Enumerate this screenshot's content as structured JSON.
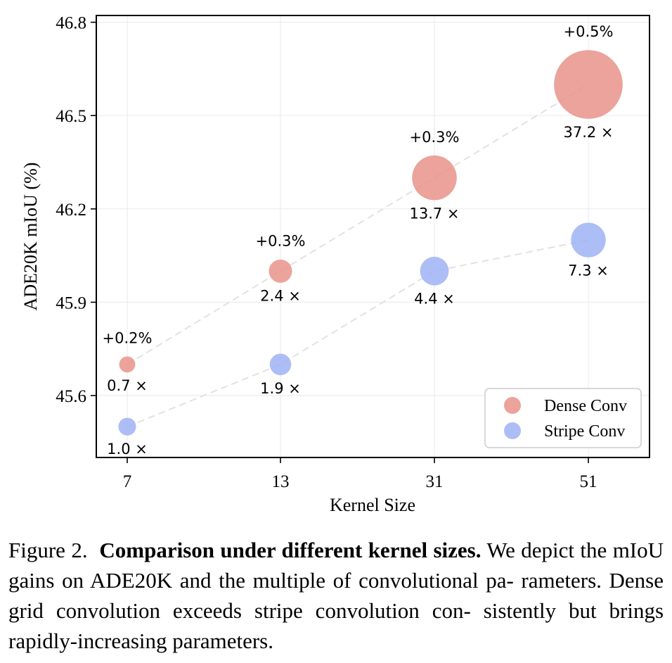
{
  "chart_data": {
    "type": "scatter",
    "x_categories": [
      "7",
      "13",
      "31",
      "51"
    ],
    "xlabel": "Kernel Size",
    "ylabel": "ADE20K mIoU (%)",
    "ylim": [
      45.4,
      46.82
    ],
    "yticks": [
      "45.6",
      "45.9",
      "46.2",
      "46.5",
      "46.8"
    ],
    "grid": true,
    "legend_position": "bottom-right",
    "series": [
      {
        "name": "Dense Conv",
        "color": "#e8938b",
        "line_style": "dashed",
        "values": [
          45.7,
          46.0,
          46.3,
          46.6
        ],
        "size_labels": [
          "0.7 ×",
          "2.4 ×",
          "13.7 ×",
          "37.2 ×"
        ],
        "param_multiples": [
          0.7,
          2.4,
          13.7,
          37.2
        ],
        "gain_labels": [
          "+0.2%",
          "+0.3%",
          "+0.3%",
          "+0.5%"
        ]
      },
      {
        "name": "Stripe Conv",
        "color": "#9fb3f4",
        "line_style": "dashed",
        "values": [
          45.5,
          45.7,
          46.0,
          46.1
        ],
        "size_labels": [
          "1.0 ×",
          "1.9 ×",
          "4.4 ×",
          "7.3 ×"
        ],
        "param_multiples": [
          1.0,
          1.9,
          4.4,
          7.3
        ]
      }
    ]
  },
  "caption": {
    "figure_label": "Figure 2.",
    "bold_title": "Comparison under different kernel sizes.",
    "body_lines": [
      "We depict",
      "the mIoU gains on ADE20K and the multiple of convolutional pa-",
      "rameters. Dense grid convolution exceeds stripe convolution con-",
      "sistently but brings rapidly-increasing parameters."
    ]
  }
}
